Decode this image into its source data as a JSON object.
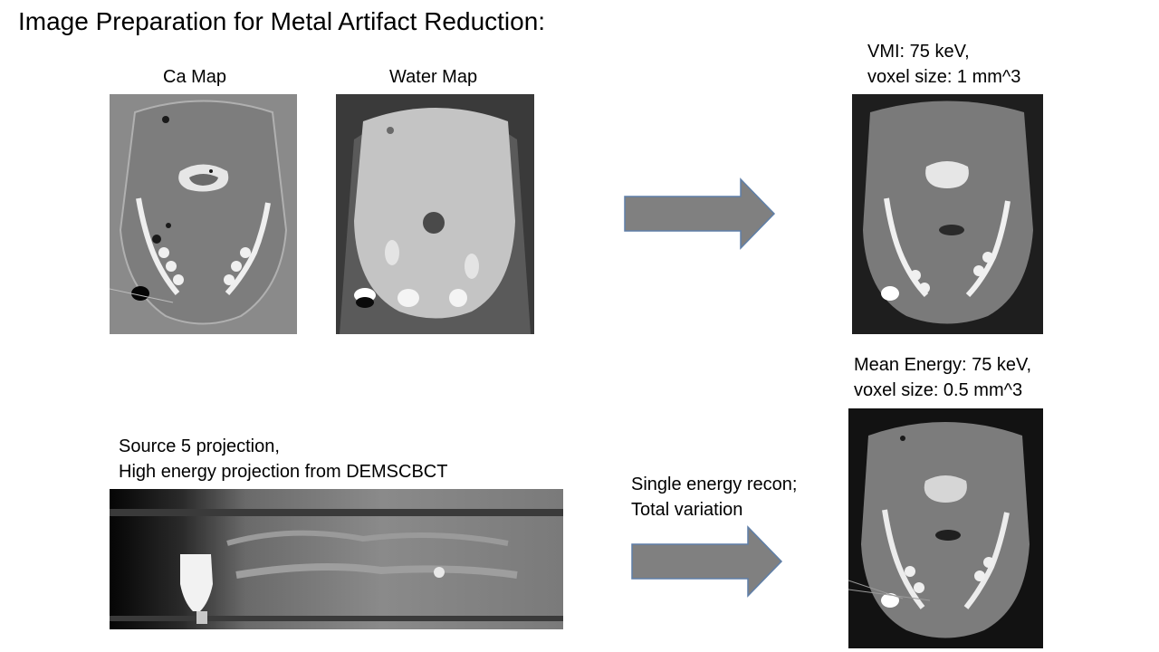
{
  "slide": {
    "title": "Image Preparation for Metal Artifact Reduction:"
  },
  "top_row": {
    "ca_map_label": "Ca Map",
    "water_map_label": "Water Map",
    "vmi_caption_line1": "VMI: 75 keV,",
    "vmi_caption_line2": "voxel size: 1 mm^3"
  },
  "bottom_row": {
    "projection_caption_line1": "Source 5 projection,",
    "projection_caption_line2": "High energy projection from DEMSCBCT",
    "process_caption_line1": "Single energy recon;",
    "process_caption_line2": "Total variation",
    "mean_energy_caption_line1": "Mean Energy: 75 keV,",
    "mean_energy_caption_line2": "voxel size: 0.5 mm^3"
  },
  "colors": {
    "arrow_fill": "#808080",
    "arrow_stroke": "#5f7fa8"
  }
}
